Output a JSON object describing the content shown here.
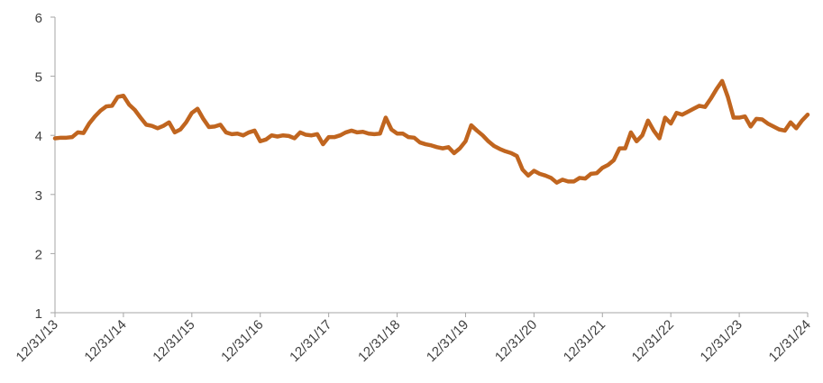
{
  "chart_data": {
    "type": "line",
    "categories": [
      "12/31/13",
      null,
      null,
      null,
      null,
      null,
      null,
      null,
      null,
      null,
      null,
      null,
      "12/31/14",
      null,
      null,
      null,
      null,
      null,
      null,
      null,
      null,
      null,
      null,
      null,
      "12/31/15",
      null,
      null,
      null,
      null,
      null,
      null,
      null,
      null,
      null,
      null,
      null,
      "12/31/16",
      null,
      null,
      null,
      null,
      null,
      null,
      null,
      null,
      null,
      null,
      null,
      "12/31/17",
      null,
      null,
      null,
      null,
      null,
      null,
      null,
      null,
      null,
      null,
      null,
      "12/31/18",
      null,
      null,
      null,
      null,
      null,
      null,
      null,
      null,
      null,
      null,
      null,
      "12/31/19",
      null,
      null,
      null,
      null,
      null,
      null,
      null,
      null,
      null,
      null,
      null,
      "12/31/20",
      null,
      null,
      null,
      null,
      null,
      null,
      null,
      null,
      null,
      null,
      null,
      "12/31/21",
      null,
      null,
      null,
      null,
      null,
      null,
      null,
      null,
      null,
      null,
      null,
      "12/31/22",
      null,
      null,
      null,
      null,
      null,
      null,
      null,
      null,
      null,
      null,
      null,
      "12/31/23",
      null,
      null,
      null,
      null,
      null,
      null,
      null,
      null,
      null,
      null,
      null,
      "12/31/24"
    ],
    "values": [
      3.95,
      3.96,
      3.96,
      3.97,
      4.05,
      4.04,
      4.2,
      4.32,
      4.42,
      4.49,
      4.5,
      4.65,
      4.67,
      4.52,
      4.43,
      4.3,
      4.18,
      4.16,
      4.12,
      4.16,
      4.22,
      4.05,
      4.1,
      4.22,
      4.38,
      4.45,
      4.28,
      4.14,
      4.15,
      4.18,
      4.05,
      4.02,
      4.03,
      4.0,
      4.05,
      4.08,
      3.9,
      3.93,
      4.0,
      3.98,
      4.0,
      3.99,
      3.95,
      4.05,
      4.01,
      4.0,
      4.02,
      3.85,
      3.97,
      3.97,
      4.0,
      4.05,
      4.08,
      4.05,
      4.06,
      4.03,
      4.02,
      4.03,
      4.3,
      4.1,
      4.03,
      4.03,
      3.97,
      3.96,
      3.88,
      3.85,
      3.83,
      3.8,
      3.78,
      3.8,
      3.7,
      3.78,
      3.9,
      4.17,
      4.08,
      4.0,
      3.9,
      3.82,
      3.77,
      3.73,
      3.7,
      3.65,
      3.42,
      3.32,
      3.4,
      3.35,
      3.32,
      3.28,
      3.2,
      3.25,
      3.22,
      3.22,
      3.28,
      3.27,
      3.35,
      3.36,
      3.45,
      3.5,
      3.58,
      3.78,
      3.78,
      4.05,
      3.9,
      4.0,
      4.25,
      4.08,
      3.95,
      4.3,
      4.2,
      4.38,
      4.35,
      4.4,
      4.45,
      4.5,
      4.48,
      4.62,
      4.78,
      4.92,
      4.65,
      4.3,
      4.3,
      4.32,
      4.15,
      4.28,
      4.27,
      4.2,
      4.15,
      4.1,
      4.08,
      4.22,
      4.12,
      4.25,
      4.35
    ],
    "color": "#c0651f",
    "ylim": [
      1,
      6
    ],
    "yticks": [
      1,
      2,
      3,
      4,
      5,
      6
    ],
    "grid": false
  }
}
